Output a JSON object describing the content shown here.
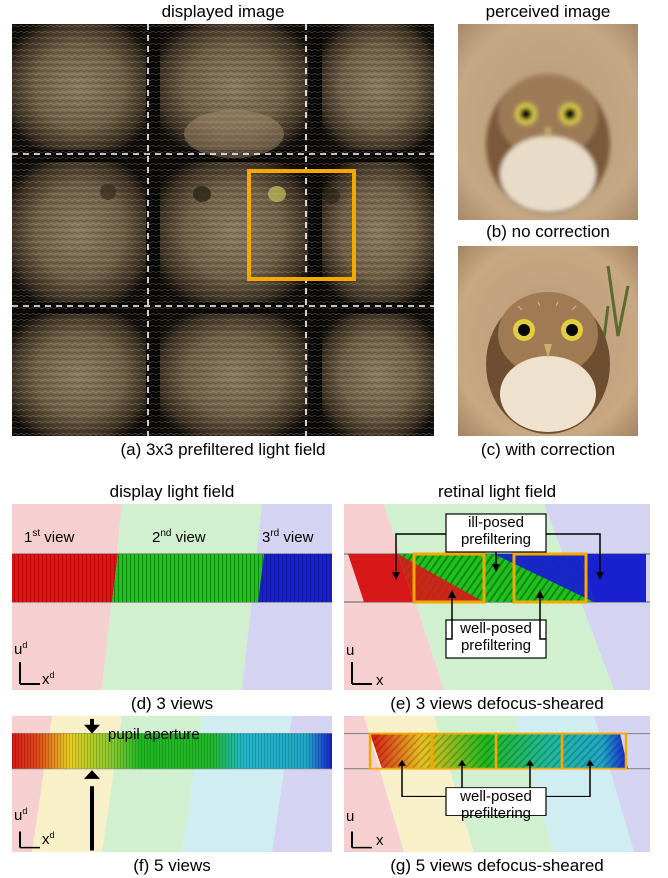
{
  "top": {
    "displayed_title": "displayed image",
    "perceived_title": "perceived image",
    "caption_a": "(a) 3x3 prefiltered light field",
    "caption_b": "(b) no correction",
    "caption_c": "(c) with correction"
  },
  "middle": {
    "display_title": "display light field",
    "retinal_title": "retinal light field",
    "view1_base": "1",
    "view1_sup": "st",
    "view1_rest": " view",
    "view2_base": "2",
    "view2_sup": "nd",
    "view2_rest": " view",
    "view3_base": "3",
    "view3_sup": "rd",
    "view3_rest": " view",
    "ill_posed": [
      "ill-posed",
      "prefiltering"
    ],
    "well_posed": [
      "well-posed",
      "prefiltering"
    ],
    "caption_d": "(d) 3 views",
    "caption_e": "(e) 3 views defocus-sheared"
  },
  "bottom": {
    "pupil": "pupil aperture",
    "well_posed": [
      "well-posed",
      "prefiltering"
    ],
    "caption_f": "(f) 5 views",
    "caption_g": "(g) 5 views defocus-sheared"
  },
  "axes": {
    "ud": "u",
    "ud_sup": "d",
    "xd": "x",
    "xd_sup": "d",
    "u": "u",
    "x": "x"
  },
  "colors": {
    "orange": "#f5a800",
    "red": "#d81818",
    "green": "#18b818",
    "blue": "#1818c8",
    "yellow": "#e8d820",
    "cyan": "#20b8c8"
  }
}
